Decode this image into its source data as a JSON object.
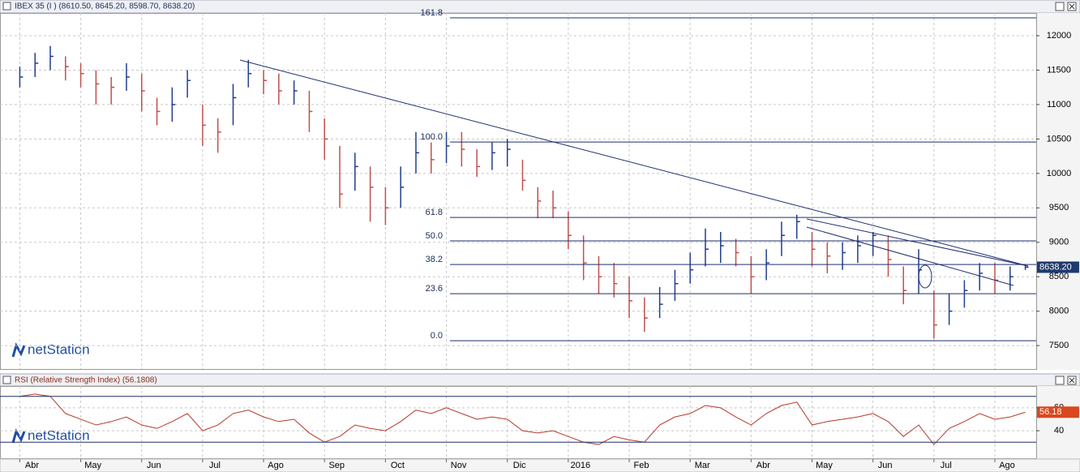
{
  "chart_data": [
    {
      "type": "ohlc",
      "title": "IBEX 35 (I ) (8610.50, 8645.20, 8598.70, 8638.20)",
      "watermark": "netStation",
      "up_color": "#1f3f8f",
      "down_color": "#c0504d",
      "high": [
        11550,
        11750,
        11850,
        11700,
        11600,
        11500,
        11400,
        11600,
        11450,
        11100,
        11250,
        11500,
        11000,
        10800,
        11300,
        11650,
        11500,
        11450,
        11350,
        11200,
        10800,
        10400,
        10300,
        10100,
        9800,
        10100,
        10600,
        10450,
        10600,
        10600,
        10350,
        10450,
        10500,
        10200,
        9800,
        9750,
        9450,
        9100,
        8800,
        8700,
        8500,
        8200,
        8350,
        8600,
        8850,
        9200,
        9150,
        9050,
        8800,
        8900,
        9300,
        9400,
        9150,
        9000,
        9000,
        9100,
        9150,
        9100,
        8650,
        8900,
        8300,
        8250,
        8450,
        8700,
        8700,
        8650,
        8660
      ],
      "low": [
        11250,
        11400,
        11500,
        11350,
        11250,
        11000,
        11000,
        11200,
        10900,
        10700,
        10750,
        11100,
        10400,
        10300,
        10700,
        11250,
        11150,
        11000,
        11000,
        10600,
        10200,
        9500,
        9750,
        9300,
        9250,
        9500,
        10000,
        10000,
        10150,
        10100,
        9950,
        10050,
        10100,
        9750,
        9350,
        9350,
        8900,
        8450,
        8250,
        8200,
        7900,
        7700,
        7900,
        8150,
        8400,
        8650,
        8700,
        8650,
        8250,
        8450,
        8800,
        9050,
        8650,
        8550,
        8600,
        8700,
        8800,
        8500,
        8100,
        8250,
        7600,
        7800,
        8050,
        8300,
        8250,
        8300,
        8598.7
      ],
      "close": [
        11400,
        11600,
        11700,
        11550,
        11450,
        11300,
        11250,
        11400,
        11200,
        10900,
        11000,
        11350,
        10700,
        10600,
        11100,
        11450,
        11350,
        11200,
        11200,
        10900,
        10500,
        9700,
        10100,
        9800,
        9500,
        9800,
        10300,
        10200,
        10400,
        10350,
        10100,
        10300,
        10350,
        9900,
        9600,
        9500,
        9100,
        8700,
        8500,
        8400,
        8150,
        7900,
        8100,
        8400,
        8600,
        8900,
        8950,
        8850,
        8500,
        8700,
        9100,
        9300,
        8900,
        8800,
        8850,
        8950,
        9100,
        8750,
        8300,
        8600,
        7800,
        8000,
        8300,
        8550,
        8450,
        8500,
        8638.2
      ],
      "ylim": [
        7160,
        12330
      ],
      "yticks": [
        7500,
        8000,
        8500,
        9000,
        9500,
        10000,
        10500,
        11000,
        11500,
        12000
      ],
      "grid": true,
      "fib_levels": [
        {
          "value": 12260,
          "label": "161.8"
        },
        {
          "value": 10456,
          "label": "100.0"
        },
        {
          "value": 9361,
          "label": "61.8"
        },
        {
          "value": 9020,
          "label": "50.0"
        },
        {
          "value": 8678,
          "label": "38.2"
        },
        {
          "value": 8254,
          "label": "23.6"
        },
        {
          "value": 7570,
          "label": "0.0"
        }
      ],
      "last_label": {
        "value": 8638.2,
        "label": "8638.20"
      }
    },
    {
      "type": "line",
      "title": "RSI (Relative Strength Index) (56.1808)",
      "watermark": "netStation",
      "color": "#b5382b",
      "values": [
        70,
        72,
        70,
        55,
        50,
        45,
        48,
        52,
        45,
        42,
        48,
        55,
        40,
        45,
        55,
        58,
        52,
        48,
        50,
        38,
        30,
        35,
        45,
        42,
        40,
        48,
        58,
        55,
        60,
        55,
        50,
        52,
        50,
        40,
        38,
        40,
        35,
        30,
        28,
        35,
        32,
        30,
        45,
        52,
        55,
        62,
        60,
        52,
        45,
        55,
        62,
        65,
        45,
        48,
        50,
        52,
        55,
        48,
        35,
        45,
        28,
        42,
        48,
        55,
        50,
        52,
        56.18
      ],
      "ylim": [
        16,
        79
      ],
      "yticks": [
        40,
        60
      ],
      "levels": [
        30,
        70
      ],
      "grid": true,
      "last_label": {
        "value": 56.18,
        "label": "56.18"
      },
      "xtick_labels": [
        "Abr",
        "May",
        "Jun",
        "Jul",
        "Ago",
        "Sep",
        "Oct",
        "Nov",
        "Dic",
        "2016",
        "Feb",
        "Mar",
        "Abr",
        "May",
        "Jun",
        "Jul",
        "Ago"
      ]
    }
  ]
}
